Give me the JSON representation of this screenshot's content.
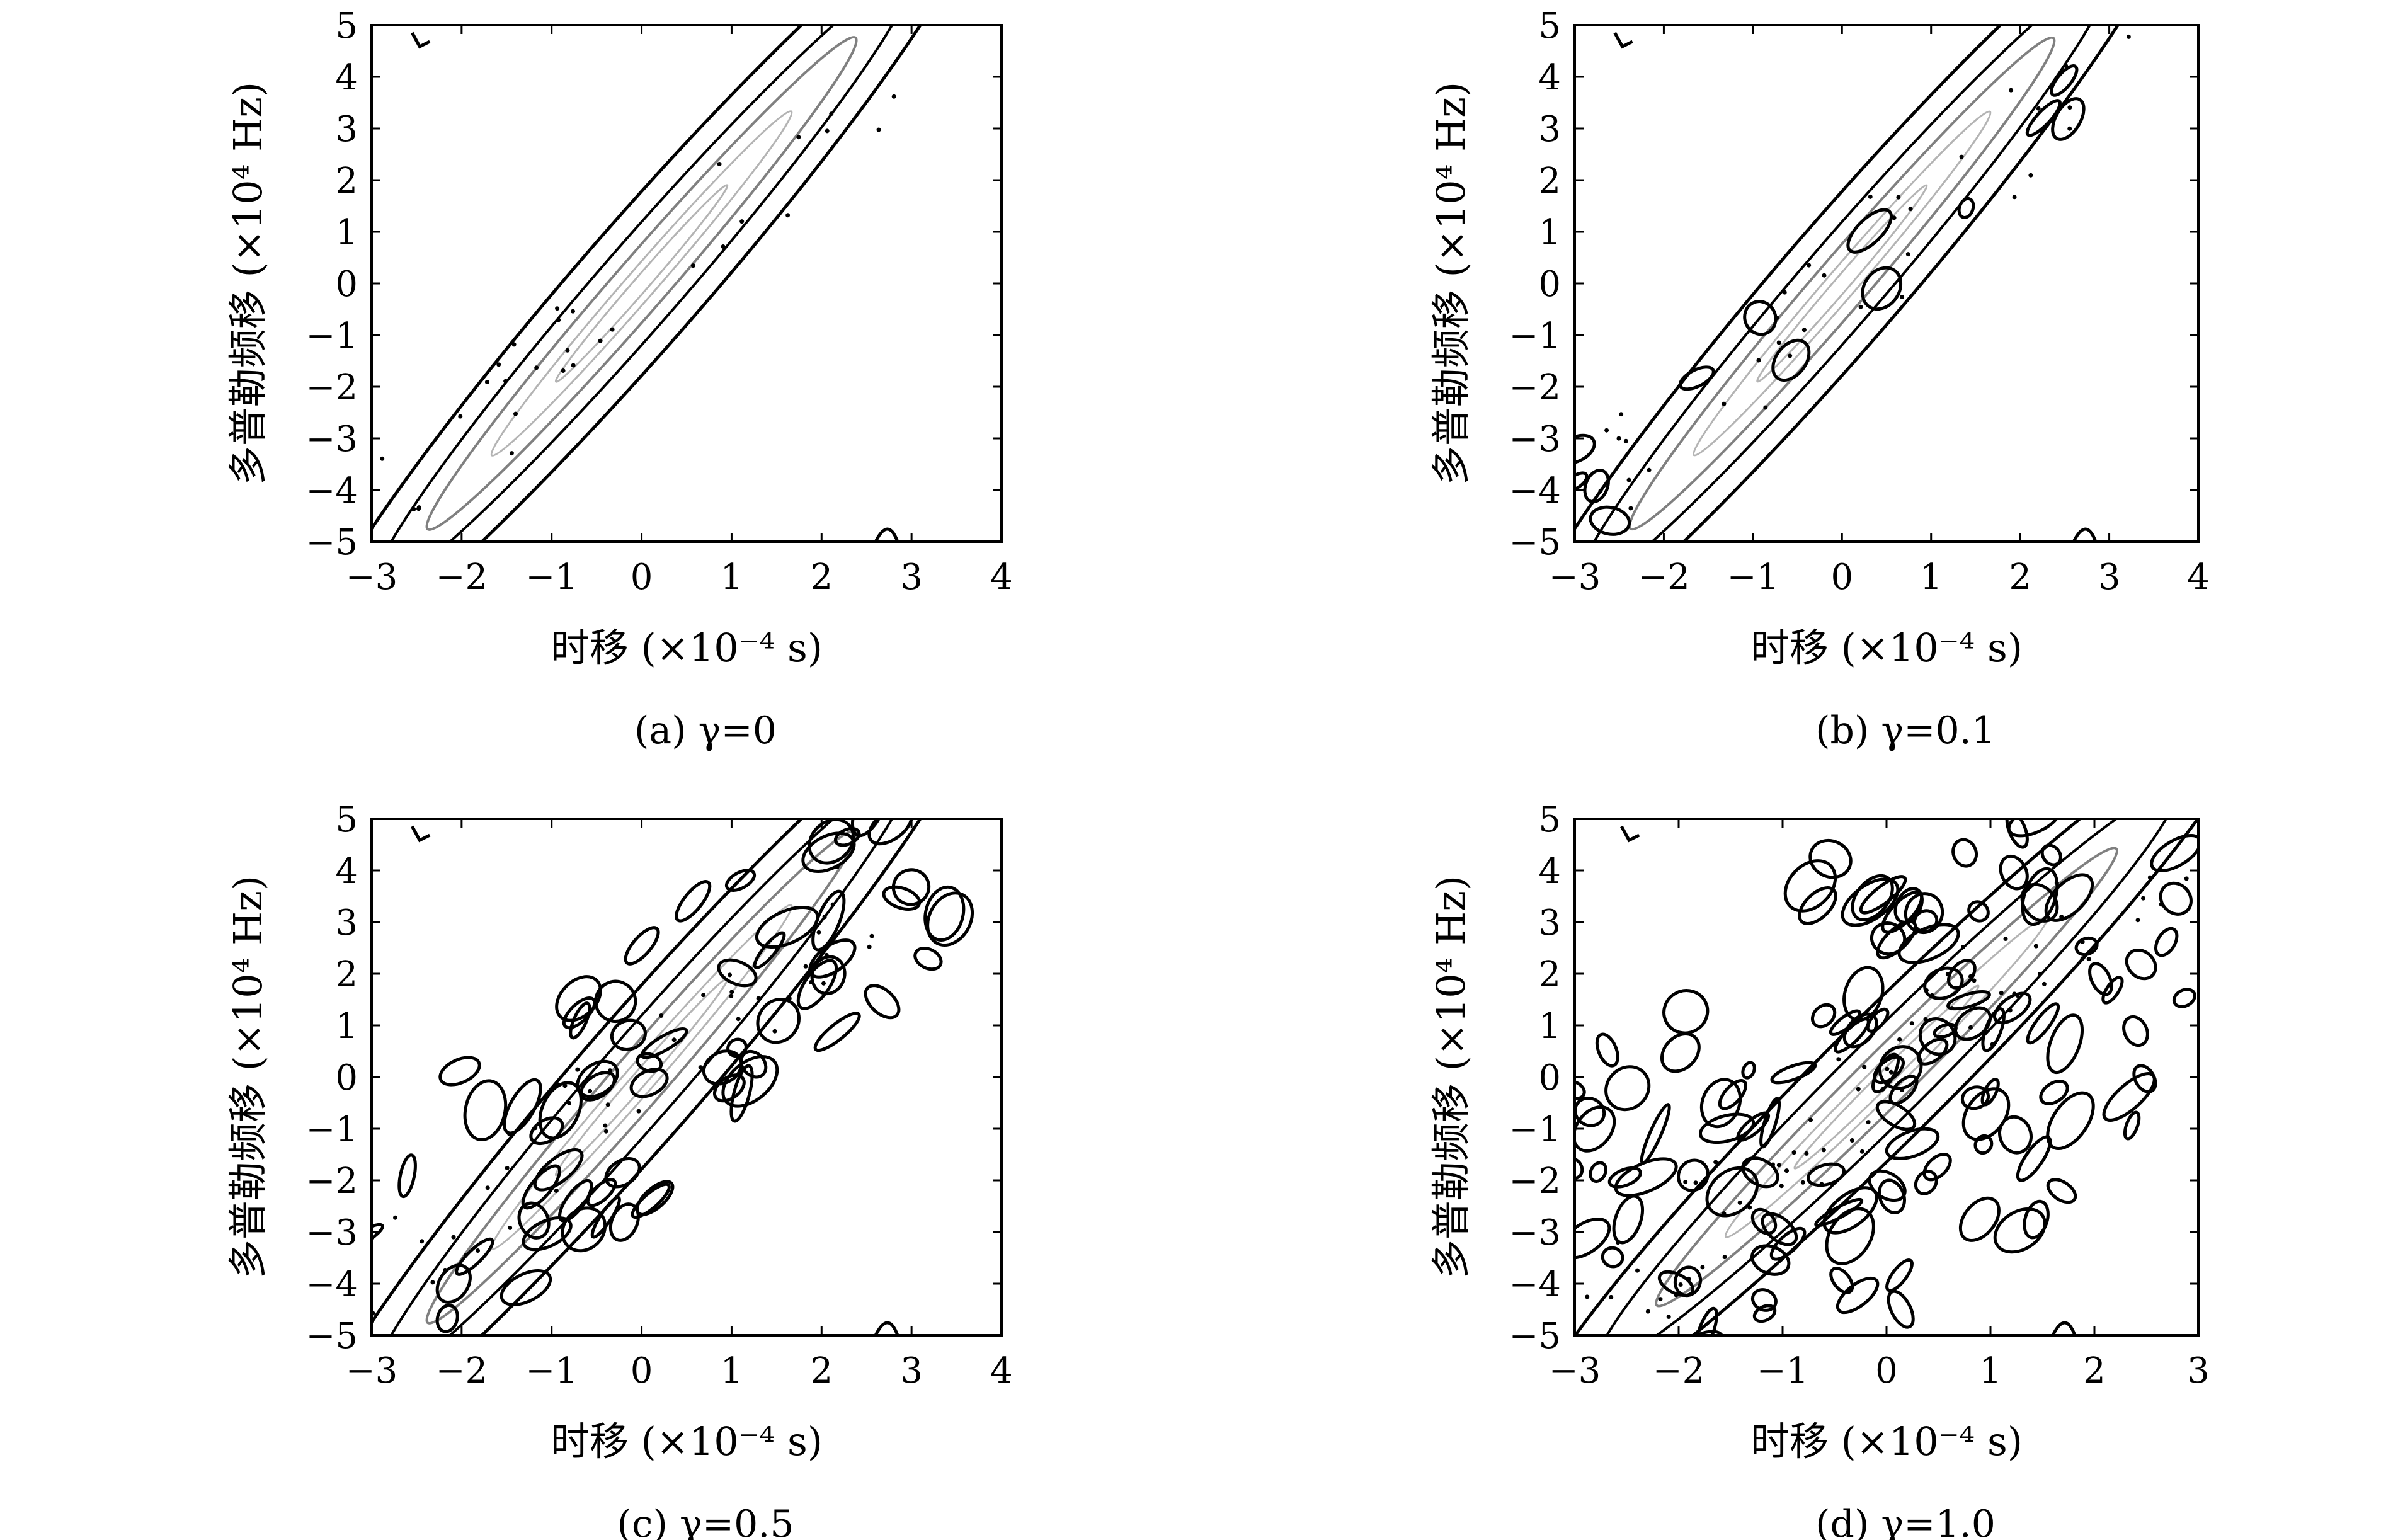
{
  "chart_data": [
    {
      "type": "contour",
      "panel": "a",
      "caption": "(a) γ=0",
      "xlabel": "时移 (×10⁻⁴ s)",
      "ylabel": "多普勒频移 (×10⁴ Hz)",
      "xlim": [
        -3,
        4
      ],
      "ylim": [
        -5,
        5
      ],
      "xticks": [
        "−3",
        "−2",
        "−1",
        "0",
        "1",
        "2",
        "3",
        "4"
      ],
      "yticks": [
        "−5",
        "−4",
        "−3",
        "−2",
        "−1",
        "0",
        "1",
        "2",
        "3",
        "4",
        "5"
      ],
      "ridge": {
        "slope": 2.0,
        "intercept": 0
      },
      "noise": 0.0,
      "grid": false
    },
    {
      "type": "contour",
      "panel": "b",
      "caption": "(b) γ=0.1",
      "xlabel": "时移 (×10⁻⁴ s)",
      "ylabel": "多普勒频移 (×10⁴ Hz)",
      "xlim": [
        -3,
        4
      ],
      "ylim": [
        -5,
        5
      ],
      "xticks": [
        "−3",
        "−2",
        "−1",
        "0",
        "1",
        "2",
        "3",
        "4"
      ],
      "yticks": [
        "−5",
        "−4",
        "−3",
        "−2",
        "−1",
        "0",
        "1",
        "2",
        "3",
        "4",
        "5"
      ],
      "ridge": {
        "slope": 2.0,
        "intercept": 0
      },
      "noise": 0.1,
      "grid": false
    },
    {
      "type": "contour",
      "panel": "c",
      "caption": "(c) γ=0.5",
      "xlabel": "时移 (×10⁻⁴ s)",
      "ylabel": "多普勒频移 (×10⁴ Hz)",
      "xlim": [
        -3,
        4
      ],
      "ylim": [
        -5,
        5
      ],
      "xticks": [
        "−3",
        "−2",
        "−1",
        "0",
        "1",
        "2",
        "3",
        "4"
      ],
      "yticks": [
        "−5",
        "−4",
        "−3",
        "−2",
        "−1",
        "0",
        "1",
        "2",
        "3",
        "4",
        "5"
      ],
      "ridge": {
        "slope": 2.0,
        "intercept": 0
      },
      "noise": 0.5,
      "grid": false
    },
    {
      "type": "contour",
      "panel": "d",
      "caption": "(d) γ=1.0",
      "xlabel": "时移 (×10⁻⁴ s)",
      "ylabel": "多普勒频移 (×10⁴ Hz)",
      "xlim": [
        -3,
        3
      ],
      "ylim": [
        -5,
        5
      ],
      "xticks": [
        "−3",
        "−2",
        "−1",
        "0",
        "1",
        "2",
        "3"
      ],
      "yticks": [
        "−5",
        "−4",
        "−3",
        "−2",
        "−1",
        "0",
        "1",
        "2",
        "3",
        "4",
        "5"
      ],
      "ridge": {
        "slope": 2.0,
        "intercept": 0
      },
      "noise": 1.0,
      "grid": false
    }
  ]
}
